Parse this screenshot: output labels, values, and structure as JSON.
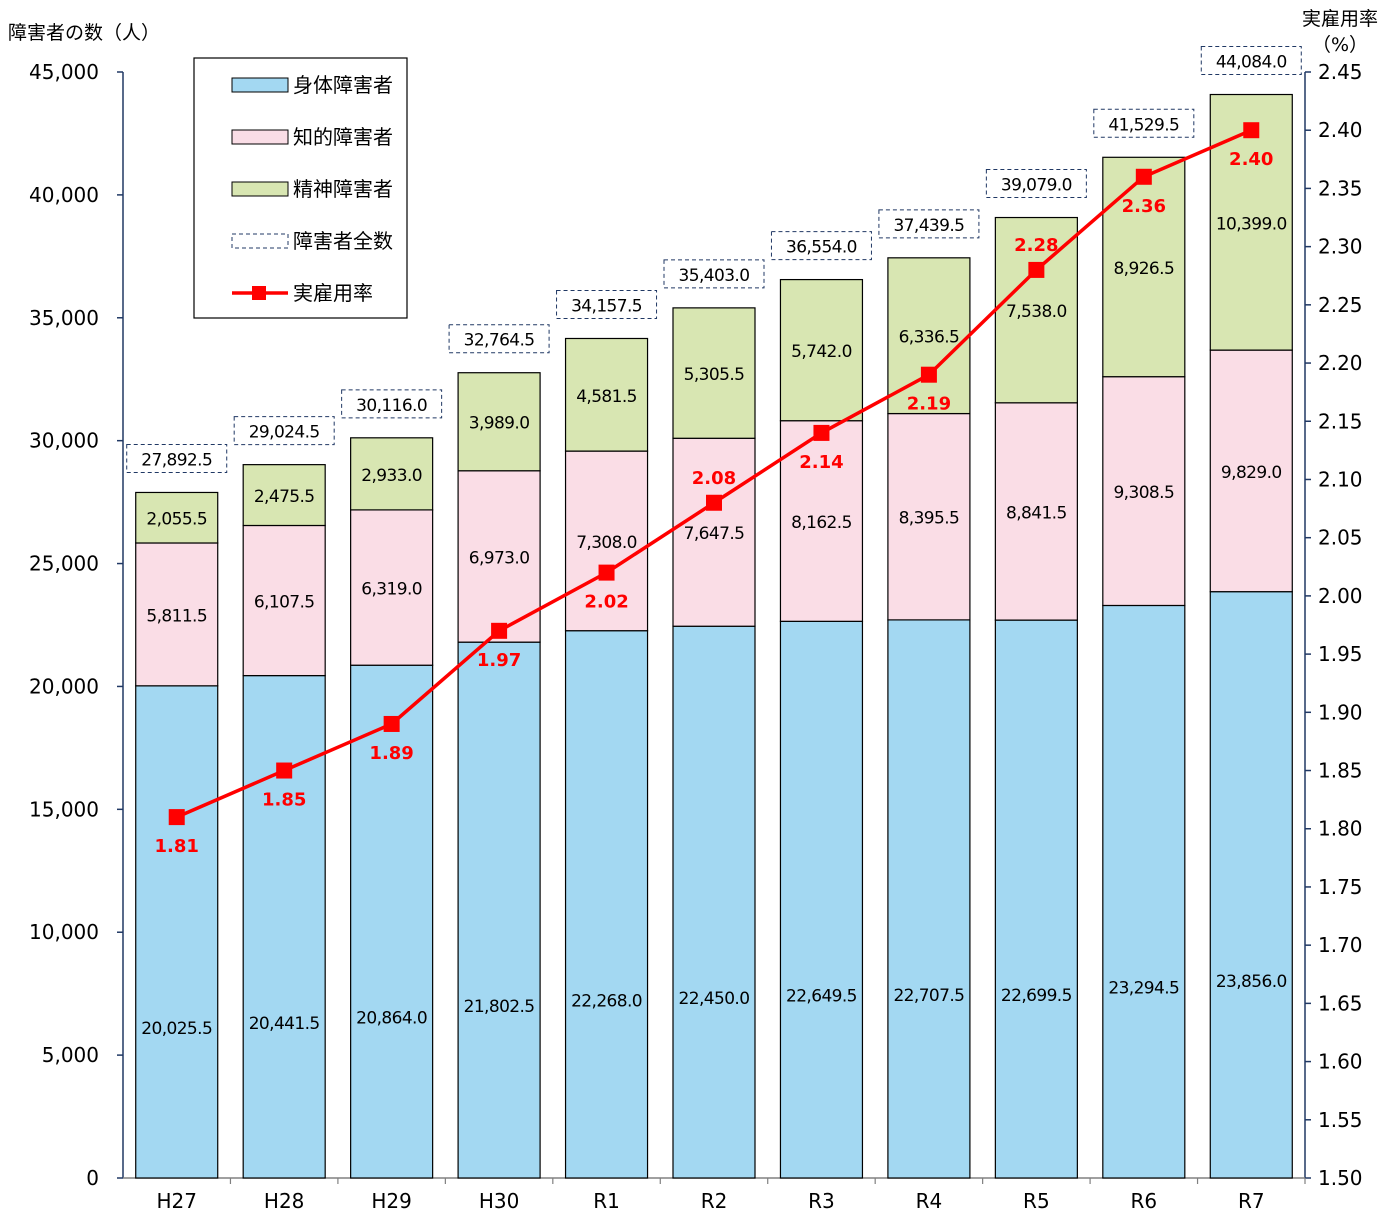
{
  "chart_data": {
    "type": "bar",
    "stacked": true,
    "categories": [
      "H27",
      "H28",
      "H29",
      "H30",
      "R1",
      "R2",
      "R3",
      "R4",
      "R5",
      "R6",
      "R7"
    ],
    "y_left": {
      "label": "障害者の数（人）",
      "min": 0,
      "max": 45000,
      "step": 5000,
      "ticks": [
        "0",
        "5,000",
        "10,000",
        "15,000",
        "20,000",
        "25,000",
        "30,000",
        "35,000",
        "40,000",
        "45,000"
      ]
    },
    "y_right": {
      "label_line1": "実雇用率",
      "label_line2": "（%）",
      "min": 1.5,
      "max": 2.45,
      "step": 0.05,
      "ticks": [
        "1.50",
        "1.55",
        "1.60",
        "1.65",
        "1.70",
        "1.75",
        "1.80",
        "1.85",
        "1.90",
        "1.95",
        "2.00",
        "2.05",
        "2.10",
        "2.15",
        "2.20",
        "2.25",
        "2.30",
        "2.35",
        "2.40",
        "2.45"
      ]
    },
    "series": [
      {
        "name": "身体障害者",
        "color": "#a3d8f2",
        "values": [
          20025.5,
          20441.5,
          20864.0,
          21802.5,
          22268.0,
          22450.0,
          22649.5,
          22707.5,
          22699.5,
          23294.5,
          23856.0
        ],
        "labels": [
          "20,025.5",
          "20,441.5",
          "20,864.0",
          "21,802.5",
          "22,268.0",
          "22,450.0",
          "22,649.5",
          "22,707.5",
          "22,699.5",
          "23,294.5",
          "23,856.0"
        ]
      },
      {
        "name": "知的障害者",
        "color": "#fadde6",
        "values": [
          5811.5,
          6107.5,
          6319.0,
          6973.0,
          7308.0,
          7647.5,
          8162.5,
          8395.5,
          8841.5,
          9308.5,
          9829.0
        ],
        "labels": [
          "5,811.5",
          "6,107.5",
          "6,319.0",
          "6,973.0",
          "7,308.0",
          "7,647.5",
          "8,162.5",
          "8,395.5",
          "8,841.5",
          "9,308.5",
          "9,829.0"
        ]
      },
      {
        "name": "精神障害者",
        "color": "#d8e6b2",
        "values": [
          2055.5,
          2475.5,
          2933.0,
          3989.0,
          4581.5,
          5305.5,
          5742.0,
          6336.5,
          7538.0,
          8926.5,
          10399.0
        ],
        "labels": [
          "2,055.5",
          "2,475.5",
          "2,933.0",
          "3,989.0",
          "4,581.5",
          "5,305.5",
          "5,742.0",
          "6,336.5",
          "7,538.0",
          "8,926.5",
          "10,399.0"
        ]
      }
    ],
    "totals": {
      "name": "障害者全数",
      "values": [
        27892.5,
        29024.5,
        30116.0,
        32764.5,
        34157.5,
        35403.0,
        36554.0,
        37439.5,
        39079.0,
        41529.5,
        44084.0
      ],
      "labels": [
        "27,892.5",
        "29,024.5",
        "30,116.0",
        "32,764.5",
        "34,157.5",
        "35,403.0",
        "36,554.0",
        "37,439.5",
        "39,079.0",
        "41,529.5",
        "44,084.0"
      ]
    },
    "rate": {
      "name": "実雇用率",
      "axis": "right",
      "color": "#ff0000",
      "values": [
        1.81,
        1.85,
        1.89,
        1.97,
        2.02,
        2.08,
        2.14,
        2.19,
        2.28,
        2.36,
        2.4
      ],
      "labels": [
        "1.81",
        "1.85",
        "1.89",
        "1.97",
        "2.02",
        "2.08",
        "2.14",
        "2.19",
        "2.28",
        "2.36",
        "2.40"
      ]
    },
    "legend_position": "top-left",
    "grid": false
  }
}
